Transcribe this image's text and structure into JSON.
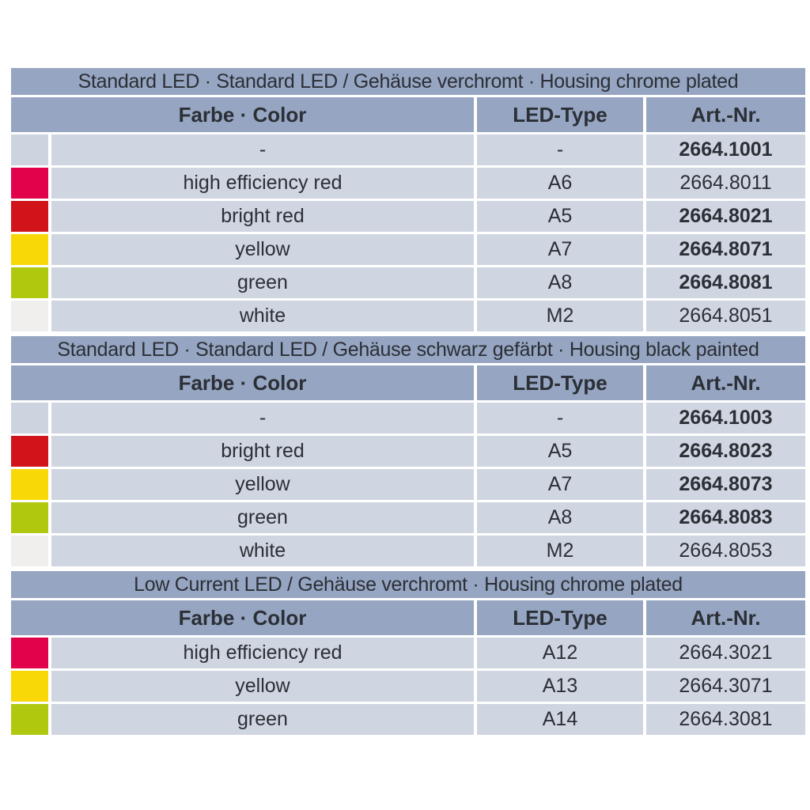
{
  "colors": {
    "theme": {
      "bar": "#96a5c1",
      "row": "#cfd6e1",
      "text": "#2b2f36",
      "page_bg": "#ffffff"
    },
    "swatch": {
      "none": "#ccd4df",
      "high_efficiency_red": "#e2024b",
      "bright_red": "#d11419",
      "yellow": "#f8d807",
      "green": "#b0c80e",
      "white": "#f0efed"
    }
  },
  "table": {
    "sections": [
      {
        "title": "Standard LED · Standard LED / Gehäuse verchromt · Housing chrome plated",
        "headers": {
          "color": "Farbe · Color",
          "led_type": "LED-Type",
          "art_nr": "Art.-Nr."
        },
        "rows": [
          {
            "swatch": "none",
            "color": "-",
            "led_type": "-",
            "art_nr": "2664.1001",
            "bold": true
          },
          {
            "swatch": "high_efficiency_red",
            "color": "high efficiency red",
            "led_type": "A6",
            "art_nr": "2664.8011",
            "bold": false
          },
          {
            "swatch": "bright_red",
            "color": "bright red",
            "led_type": "A5",
            "art_nr": "2664.8021",
            "bold": true
          },
          {
            "swatch": "yellow",
            "color": "yellow",
            "led_type": "A7",
            "art_nr": "2664.8071",
            "bold": true
          },
          {
            "swatch": "green",
            "color": "green",
            "led_type": "A8",
            "art_nr": "2664.8081",
            "bold": true
          },
          {
            "swatch": "white",
            "color": "white",
            "led_type": "M2",
            "art_nr": "2664.8051",
            "bold": false
          }
        ]
      },
      {
        "title": "Standard LED · Standard LED / Gehäuse schwarz gefärbt · Housing black painted",
        "headers": {
          "color": "Farbe · Color",
          "led_type": "LED-Type",
          "art_nr": "Art.-Nr."
        },
        "rows": [
          {
            "swatch": "none",
            "color": "-",
            "led_type": "-",
            "art_nr": "2664.1003",
            "bold": true
          },
          {
            "swatch": "bright_red",
            "color": "bright red",
            "led_type": "A5",
            "art_nr": "2664.8023",
            "bold": true
          },
          {
            "swatch": "yellow",
            "color": "yellow",
            "led_type": "A7",
            "art_nr": "2664.8073",
            "bold": true
          },
          {
            "swatch": "green",
            "color": "green",
            "led_type": "A8",
            "art_nr": "2664.8083",
            "bold": true
          },
          {
            "swatch": "white",
            "color": "white",
            "led_type": "M2",
            "art_nr": "2664.8053",
            "bold": false
          }
        ]
      },
      {
        "title": "Low Current LED / Gehäuse verchromt · Housing chrome plated",
        "headers": {
          "color": "Farbe · Color",
          "led_type": "LED-Type",
          "art_nr": "Art.-Nr."
        },
        "rows": [
          {
            "swatch": "high_efficiency_red",
            "color": "high efficiency red",
            "led_type": "A12",
            "art_nr": "2664.3021",
            "bold": false
          },
          {
            "swatch": "yellow",
            "color": "yellow",
            "led_type": "A13",
            "art_nr": "2664.3071",
            "bold": false
          },
          {
            "swatch": "green",
            "color": "green",
            "led_type": "A14",
            "art_nr": "2664.3081",
            "bold": false
          }
        ]
      }
    ]
  }
}
